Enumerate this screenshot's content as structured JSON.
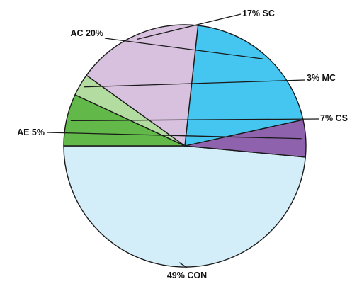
{
  "chart_data": {
    "type": "pie",
    "title": "",
    "slices": [
      {
        "label": "CON",
        "value": 49,
        "text": "49% CON",
        "color": "#d3edf9"
      },
      {
        "label": "AE",
        "value": 5,
        "text": "AE  5%",
        "color": "#8e62ad"
      },
      {
        "label": "AC",
        "value": 20,
        "text": "AC  20%",
        "color": "#44c6f1"
      },
      {
        "label": "SC",
        "value": 17,
        "text": "17% SC",
        "color": "#d8c1de"
      },
      {
        "label": "MC",
        "value": 3,
        "text": "3% MC",
        "color": "#b3dca0"
      },
      {
        "label": "CS",
        "value": 7,
        "text": "7% CS",
        "color": "#62b94a"
      }
    ]
  }
}
